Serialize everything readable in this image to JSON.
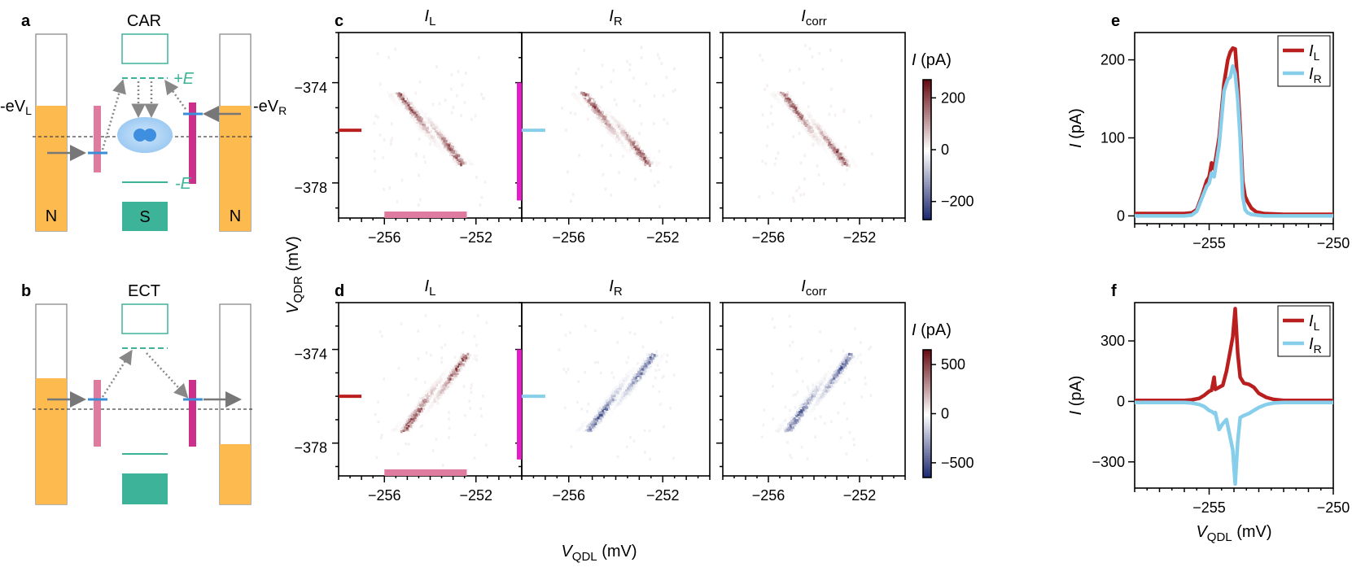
{
  "colors": {
    "orange": "#fdba4f",
    "teal": "#3db49a",
    "pink": "#e07ba0",
    "magenta": "#cc2e8c",
    "blue_level": "#3a8ed8",
    "dot_blue": "#3f8fe0",
    "red_line": "#b91f1f",
    "lightblue_line": "#87ceeb",
    "arrow_gray": "#777777",
    "dashed_line": "#444444"
  },
  "panels": {
    "a": "a",
    "b": "b",
    "c": "c",
    "d": "d",
    "e": "e",
    "f": "f"
  },
  "schematics": {
    "car": {
      "title": "CAR",
      "left_bias": "-eV",
      "left_bias_sub": "L",
      "right_bias": "-eV",
      "right_bias_sub": "R",
      "plus_e": "+E",
      "minus_e": "-E",
      "left_lead": "N",
      "right_lead": "N",
      "sc": "S"
    },
    "ect": {
      "title": "ECT"
    }
  },
  "chart_data": [
    {
      "id": "c",
      "type": "heatmap",
      "titles": [
        [
          "I",
          "L"
        ],
        [
          "I",
          "R"
        ],
        [
          "I",
          "corr"
        ]
      ],
      "xlabel": "V",
      "xlabel_sub": "QDL",
      "xlabel_unit": "(mV)",
      "ylabel": "V",
      "ylabel_sub": "QDR",
      "ylabel_unit": "(mV)",
      "xlim": [
        -258,
        -250
      ],
      "ylim": [
        -379.2,
        -371.8
      ],
      "x_ticks": [
        -256,
        -252
      ],
      "y_ticks": [
        -374,
        -378
      ],
      "x_tick_labels": [
        "−256",
        "−252"
      ],
      "y_tick_labels": [
        "−374",
        "−378"
      ],
      "colorbar": {
        "label": "I",
        "unit": "(pA)",
        "ticks": [
          200,
          0,
          -200
        ],
        "tick_labels": [
          "200",
          "0",
          "−200"
        ],
        "range": [
          -270,
          270
        ]
      },
      "feature": {
        "orientation": "negative",
        "x_start": -255.5,
        "y_start": -374.2,
        "x_end": -252.6,
        "y_end": -377.0
      },
      "markers": {
        "left_x": -257.0,
        "y": -375.7,
        "bar_x": [
          -256.0,
          -252.4
        ]
      }
    },
    {
      "id": "d",
      "type": "heatmap",
      "titles": [
        [
          "I",
          "L"
        ],
        [
          "I",
          "R"
        ],
        [
          "I",
          "corr"
        ]
      ],
      "xlabel": "V",
      "xlabel_sub": "QDL",
      "xlabel_unit": "(mV)",
      "xlim": [
        -258,
        -250
      ],
      "ylim": [
        -379.2,
        -371.8
      ],
      "x_ticks": [
        -256,
        -252
      ],
      "y_ticks": [
        -374,
        -378
      ],
      "x_tick_labels": [
        "−256",
        "−252"
      ],
      "y_tick_labels": [
        "−374",
        "−378"
      ],
      "colorbar": {
        "label": "I",
        "unit": "(pA)",
        "ticks": [
          500,
          0,
          -500
        ],
        "tick_labels": [
          "500",
          "0",
          "−500"
        ],
        "range": [
          -650,
          650
        ]
      },
      "feature": {
        "orientation": "positive",
        "x_start": -255.3,
        "y_start": -377.2,
        "x_end": -252.4,
        "y_end": -374.0
      },
      "markers": {
        "left_x": -257.0,
        "y": -375.8,
        "bar_x": [
          -256.0,
          -252.4
        ]
      }
    },
    {
      "id": "e",
      "type": "line",
      "xlabel": "",
      "ylabel": "I",
      "ylabel_unit": "(pA)",
      "xlim": [
        -258,
        -250
      ],
      "ylim": [
        -10,
        235
      ],
      "x_ticks": [
        -255,
        -250
      ],
      "x_tick_labels": [
        "−255",
        "−250"
      ],
      "y_ticks": [
        0,
        100,
        200
      ],
      "y_tick_labels": [
        "0",
        "100",
        "200"
      ],
      "legend": "top-right",
      "series": [
        {
          "name": "I",
          "sub": "L",
          "color": "#b91f1f",
          "x": [
            -258,
            -256,
            -255.7,
            -255.5,
            -255.3,
            -255.1,
            -255.0,
            -254.9,
            -254.8,
            -254.6,
            -254.4,
            -254.25,
            -254.15,
            -254.05,
            -253.95,
            -253.85,
            -253.75,
            -253.65,
            -253.55,
            -253.45,
            -253.3,
            -253.1,
            -252.8,
            -252.0,
            -250
          ],
          "values": [
            3,
            3,
            4,
            8,
            25,
            45,
            50,
            68,
            60,
            100,
            170,
            200,
            210,
            215,
            214,
            170,
            115,
            45,
            25,
            18,
            10,
            5,
            3,
            2,
            2
          ]
        },
        {
          "name": "I",
          "sub": "R",
          "color": "#87ceeb",
          "x": [
            -258,
            -256,
            -255.7,
            -255.5,
            -255.3,
            -255.1,
            -255.0,
            -254.9,
            -254.8,
            -254.6,
            -254.4,
            -254.25,
            -254.15,
            -254.05,
            -253.95,
            -253.85,
            -253.75,
            -253.65,
            -253.55,
            -253.45,
            -253.3,
            -253.1,
            -252.8,
            -252.0,
            -250
          ],
          "values": [
            0,
            0,
            1,
            6,
            22,
            38,
            42,
            55,
            50,
            90,
            160,
            175,
            178,
            192,
            182,
            150,
            100,
            25,
            8,
            4,
            2,
            1,
            0,
            0,
            0
          ]
        }
      ]
    },
    {
      "id": "f",
      "type": "line",
      "xlabel": "V",
      "xlabel_sub": "QDL",
      "xlabel_unit": "(mV)",
      "ylabel": "I",
      "ylabel_unit": "(pA)",
      "xlim": [
        -258,
        -250
      ],
      "ylim": [
        -430,
        490
      ],
      "x_ticks": [
        -255,
        -250
      ],
      "x_tick_labels": [
        "−255",
        "−250"
      ],
      "y_ticks": [
        300,
        0,
        -300
      ],
      "y_tick_labels": [
        "300",
        "0",
        "−300"
      ],
      "legend": "top-right",
      "series": [
        {
          "name": "I",
          "sub": "L",
          "color": "#b91f1f",
          "x": [
            -258,
            -256,
            -255.7,
            -255.4,
            -255.2,
            -255.0,
            -254.9,
            -254.8,
            -254.75,
            -254.6,
            -254.45,
            -254.3,
            -254.15,
            -254.05,
            -253.95,
            -253.85,
            -253.75,
            -253.6,
            -253.4,
            -253.2,
            -253.0,
            -252.7,
            -252.4,
            -252.0,
            -250
          ],
          "values": [
            5,
            5,
            8,
            15,
            30,
            50,
            55,
            120,
            60,
            70,
            80,
            150,
            250,
            320,
            460,
            240,
            120,
            90,
            85,
            70,
            40,
            20,
            10,
            5,
            5
          ]
        },
        {
          "name": "I",
          "sub": "R",
          "color": "#87ceeb",
          "x": [
            -258,
            -256,
            -255.7,
            -255.4,
            -255.2,
            -255.0,
            -254.9,
            -254.8,
            -254.75,
            -254.6,
            -254.45,
            -254.3,
            -254.15,
            -254.05,
            -253.95,
            -253.85,
            -253.75,
            -253.6,
            -253.4,
            -253.2,
            -253.0,
            -252.7,
            -252.4,
            -252.0,
            -250
          ],
          "values": [
            -5,
            -5,
            -8,
            -15,
            -25,
            -45,
            -50,
            -60,
            -55,
            -140,
            -110,
            -90,
            -180,
            -240,
            -410,
            -200,
            -80,
            -70,
            -60,
            -45,
            -30,
            -15,
            -8,
            -5,
            -5
          ]
        }
      ]
    }
  ]
}
